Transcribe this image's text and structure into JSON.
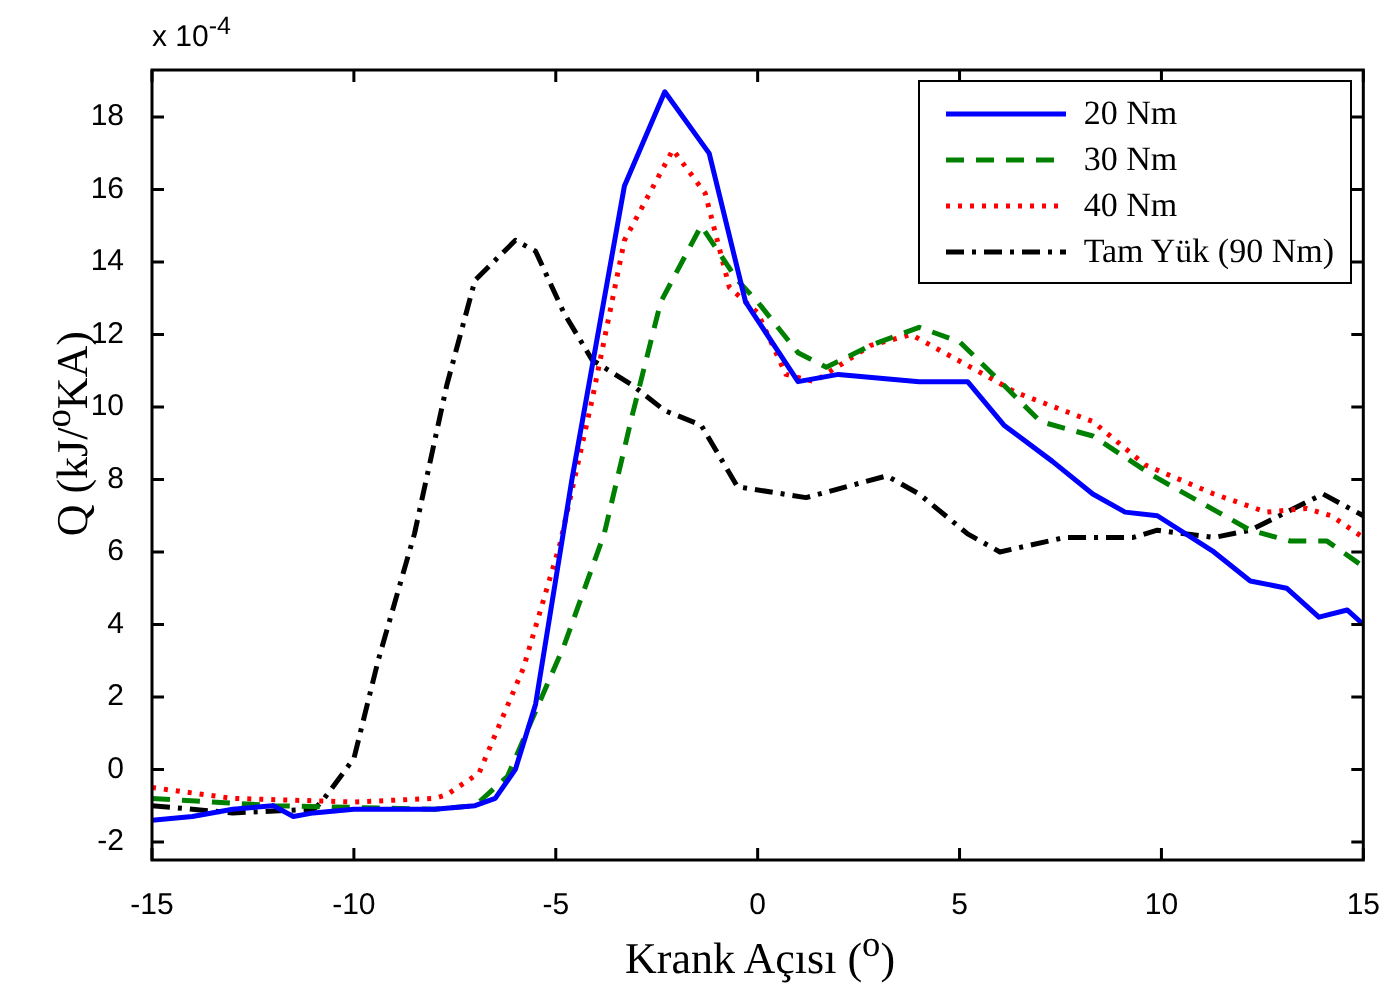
{
  "chart_data": {
    "type": "line",
    "xlabel": "Krank Açısı ($^{o}$)",
    "ylabel": "Q (kJ/$^{o}$KA)",
    "annotations": [
      "x 10$^{-4}$"
    ],
    "xlim": [
      -15,
      15
    ],
    "xticks": [
      -15,
      -10,
      -5,
      0,
      5,
      10,
      15
    ],
    "ylim": [
      -2.5,
      19.3
    ],
    "yticks": [
      -2,
      0,
      2,
      4,
      6,
      8,
      10,
      12,
      14,
      16,
      18
    ],
    "grid": false,
    "legend": "top right",
    "marker": "none",
    "series": [
      {
        "name": "20 Nm",
        "color": "#0000ff",
        "line_style": "solid",
        "x": [
          -15,
          -14,
          -13,
          -12,
          -11.5,
          -11,
          -10,
          -9,
          -8,
          -7,
          -6.5,
          -6,
          -5.5,
          -4.6,
          -3.3,
          -2.3,
          -1.2,
          -0.3,
          1.0,
          2.0,
          4.0,
          5.2,
          6.1,
          7.3,
          8.3,
          9.1,
          9.9,
          11.3,
          12.2,
          13.1,
          13.9,
          14.6,
          15
        ],
        "values": [
          -1.4,
          -1.3,
          -1.1,
          -1.0,
          -1.3,
          -1.2,
          -1.1,
          -1.1,
          -1.1,
          -1.0,
          -0.8,
          0,
          1.8,
          8.0,
          16.1,
          18.7,
          17.0,
          12.9,
          10.7,
          10.9,
          10.7,
          10.7,
          9.5,
          8.5,
          7.6,
          7.1,
          7.0,
          6.0,
          5.2,
          5.0,
          4.2,
          4.4,
          4.0
        ]
      },
      {
        "name": "30 Nm",
        "color": "#008000",
        "line_style": "dashed",
        "x": [
          -15,
          -12,
          -8,
          -7,
          -6.2,
          -4.8,
          -3.8,
          -3.1,
          -2.4,
          -1.4,
          -0.5,
          0,
          1.0,
          1.7,
          2.8,
          4.0,
          5.0,
          6.1,
          7.0,
          8.3,
          9.8,
          11.4,
          12.2,
          13.2,
          14.1,
          15
        ],
        "values": [
          -0.8,
          -1.0,
          -1.1,
          -1.0,
          -0.2,
          3.4,
          6.5,
          9.8,
          12.9,
          15.0,
          13.5,
          12.9,
          11.5,
          11.1,
          11.7,
          12.2,
          11.8,
          10.6,
          9.6,
          9.2,
          8.1,
          7.1,
          6.6,
          6.3,
          6.3,
          5.6
        ]
      },
      {
        "name": "40 Nm",
        "color": "#ff0000",
        "line_style": "dotted",
        "x": [
          -15,
          -13,
          -10,
          -8,
          -7.7,
          -6.9,
          -5.8,
          -4.9,
          -4.1,
          -3.3,
          -2.1,
          -1.3,
          -0.7,
          0,
          0.7,
          1.4,
          2.8,
          3.8,
          5.6,
          6.4,
          8.3,
          9.6,
          11.3,
          12.6,
          13.6,
          14.2,
          15
        ],
        "values": [
          -0.5,
          -0.8,
          -0.9,
          -0.8,
          -0.7,
          -0.1,
          2.8,
          6.2,
          10.2,
          14.6,
          17.1,
          15.9,
          13.3,
          12.6,
          10.9,
          10.7,
          11.7,
          12.0,
          10.9,
          10.4,
          9.6,
          8.4,
          7.6,
          7.1,
          7.2,
          7.0,
          6.4
        ]
      },
      {
        "name": "Tam Yük (90 Nm)",
        "color": "#000000",
        "line_style": "dashdot",
        "x": [
          -15,
          -13,
          -11,
          -10.8,
          -10,
          -9.4,
          -8.5,
          -7.7,
          -7.0,
          -6.0,
          -5.5,
          -4.8,
          -4.1,
          -3.1,
          -2.3,
          -1.4,
          -0.5,
          1.2,
          3.2,
          4.0,
          5.2,
          6.0,
          7.6,
          9.3,
          9.9,
          11.3,
          12.2,
          13.1,
          14.0,
          15
        ],
        "values": [
          -1.0,
          -1.2,
          -1.1,
          -0.9,
          0.3,
          3.0,
          6.5,
          10.6,
          13.5,
          14.6,
          14.3,
          12.6,
          11.3,
          10.6,
          9.9,
          9.5,
          7.8,
          7.5,
          8.1,
          7.6,
          6.5,
          6.0,
          6.4,
          6.4,
          6.6,
          6.4,
          6.6,
          7.1,
          7.6,
          7.0
        ]
      }
    ]
  }
}
